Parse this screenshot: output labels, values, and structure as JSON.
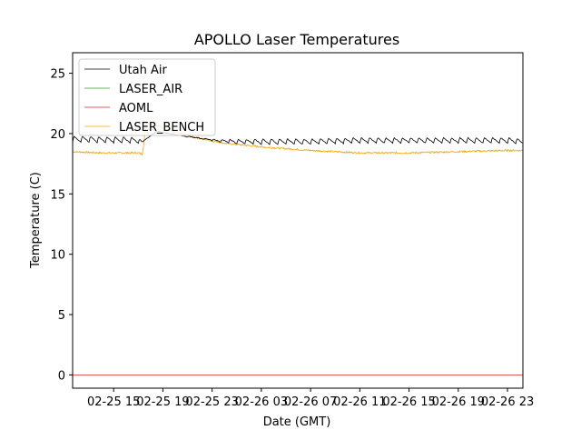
{
  "chart_data": {
    "type": "line",
    "title": "APOLLO Laser Temperatures",
    "xlabel": "Date (GMT)",
    "ylabel": "Temperature (C)",
    "xlim": [
      "2025-02-25 11:40",
      "2025-02-27 00:15"
    ],
    "ylim": [
      -1.1,
      26.7
    ],
    "x_ticks": [
      {
        "time": "2025-02-25 15:00",
        "label": "02-25 15"
      },
      {
        "time": "2025-02-25 19:00",
        "label": "02-25 19"
      },
      {
        "time": "2025-02-25 23:00",
        "label": "02-25 23"
      },
      {
        "time": "2025-02-26 03:00",
        "label": "02-26 03"
      },
      {
        "time": "2025-02-26 07:00",
        "label": "02-26 07"
      },
      {
        "time": "2025-02-26 11:00",
        "label": "02-26 11"
      },
      {
        "time": "2025-02-26 15:00",
        "label": "02-26 15"
      },
      {
        "time": "2025-02-26 19:00",
        "label": "02-26 19"
      },
      {
        "time": "2025-02-26 23:00",
        "label": "02-26 23"
      }
    ],
    "y_ticks": [
      0,
      5,
      10,
      15,
      20,
      25
    ],
    "grid": false,
    "legend": {
      "position": "top-left",
      "entries": [
        "Utah Air",
        "LASER_AIR",
        "AOML",
        "LASER_BENCH"
      ]
    },
    "series": [
      {
        "name": "Utah Air",
        "color": "#000000",
        "style": "sawtooth",
        "x": [
          "2025-02-25 11:40",
          "2025-02-25 17:00",
          "2025-02-25 17:20",
          "2025-02-25 18:30",
          "2025-02-25 20:00",
          "2025-02-25 22:00",
          "2025-02-25 23:30",
          "2025-02-26 01:00",
          "2025-02-26 03:00",
          "2025-02-26 07:00",
          "2025-02-26 11:00",
          "2025-02-26 15:00",
          "2025-02-26 19:00",
          "2025-02-26 23:00",
          "2025-02-27 00:15"
        ],
        "y": [
          19.5,
          19.4,
          19.3,
          20.2,
          19.9,
          19.6,
          19.4,
          19.3,
          19.3,
          19.3,
          19.4,
          19.4,
          19.4,
          19.4,
          19.3
        ],
        "amplitude": [
          0.5,
          0.5,
          0,
          0,
          0,
          0.1,
          0.2,
          0.35,
          0.45,
          0.45,
          0.45,
          0.45,
          0.45,
          0.45,
          0.45
        ]
      },
      {
        "name": "LASER_AIR",
        "color": "#2ca02c",
        "style": "line",
        "x": [],
        "y": []
      },
      {
        "name": "AOML",
        "color": "#d62728",
        "style": "line",
        "x": [
          "2025-02-25 11:40",
          "2025-02-27 00:15"
        ],
        "y": [
          0,
          0
        ]
      },
      {
        "name": "LASER_BENCH",
        "color": "#ffa500",
        "style": "noisy",
        "x": [
          "2025-02-25 11:40",
          "2025-02-25 14:00",
          "2025-02-25 17:00",
          "2025-02-25 17:20",
          "2025-02-25 17:40",
          "2025-02-25 18:30",
          "2025-02-25 20:00",
          "2025-02-25 22:00",
          "2025-02-26 00:00",
          "2025-02-26 03:00",
          "2025-02-26 07:00",
          "2025-02-26 11:00",
          "2025-02-26 15:00",
          "2025-02-26 19:00",
          "2025-02-26 23:00",
          "2025-02-27 00:15"
        ],
        "y": [
          18.5,
          18.4,
          18.4,
          18.3,
          20.9,
          20.7,
          20.1,
          19.6,
          19.2,
          18.9,
          18.6,
          18.4,
          18.4,
          18.5,
          18.6,
          18.6
        ],
        "amplitude": [
          0.15
        ]
      }
    ]
  }
}
